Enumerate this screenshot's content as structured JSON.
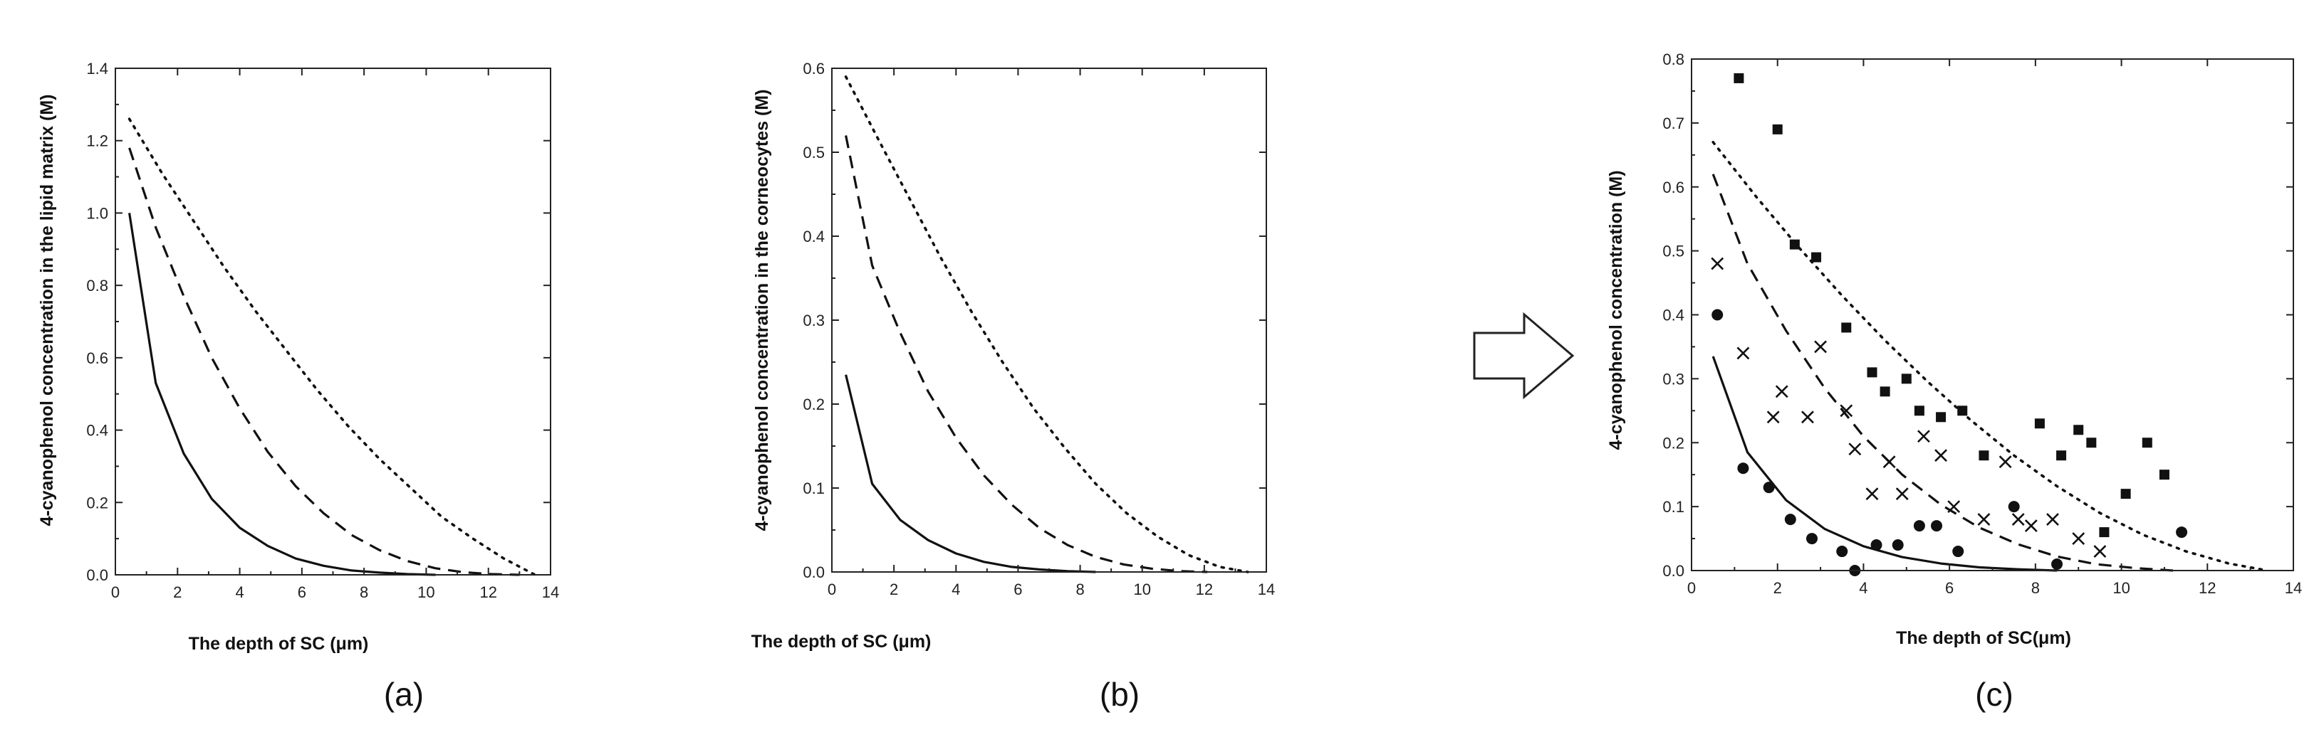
{
  "chart_data": [
    {
      "type": "line",
      "panel_label": "(a)",
      "xlabel": "The depth of SC (μm)",
      "ylabel": "4-cyanophenol concentration in the lipid matrix (M)",
      "xlim": [
        0,
        14
      ],
      "ylim": [
        0,
        1.4
      ],
      "xticks": [
        0,
        2,
        4,
        6,
        8,
        10,
        12,
        14
      ],
      "yticks": [
        0.0,
        0.2,
        0.4,
        0.6,
        0.8,
        1.0,
        1.2,
        1.4
      ],
      "ytick_labels": [
        "0.0",
        "0.2",
        "0.4",
        "0.6",
        "0.8",
        "1.0",
        "1.2",
        "1.4"
      ],
      "grid": false,
      "series": [
        {
          "style": "solid",
          "x": [
            0.45,
            1.3,
            2.2,
            3.1,
            4.0,
            4.9,
            5.8,
            6.7,
            7.6,
            8.5,
            9.4,
            10.3
          ],
          "y": [
            1.0,
            0.53,
            0.335,
            0.21,
            0.13,
            0.08,
            0.045,
            0.025,
            0.012,
            0.006,
            0.002,
            0.0
          ]
        },
        {
          "style": "dashed",
          "x": [
            0.45,
            1.3,
            2.2,
            3.1,
            4.0,
            4.9,
            5.8,
            6.7,
            7.6,
            8.5,
            9.4,
            10.3,
            11.2,
            12.1,
            13.0
          ],
          "y": [
            1.18,
            0.96,
            0.77,
            0.6,
            0.46,
            0.34,
            0.245,
            0.17,
            0.11,
            0.068,
            0.038,
            0.018,
            0.007,
            0.002,
            0.0
          ]
        },
        {
          "style": "dotted",
          "x": [
            0.45,
            1.5,
            2.5,
            3.5,
            4.5,
            5.5,
            6.5,
            7.5,
            8.5,
            9.5,
            10.5,
            11.5,
            12.5,
            13.5
          ],
          "y": [
            1.26,
            1.11,
            0.98,
            0.85,
            0.73,
            0.62,
            0.51,
            0.41,
            0.32,
            0.24,
            0.16,
            0.1,
            0.045,
            0.0
          ]
        }
      ]
    },
    {
      "type": "line",
      "panel_label": "(b)",
      "xlabel": "The depth of SC (μm)",
      "ylabel": "4-cyanophenol concentration in the corneocytes (M)",
      "xlim": [
        0,
        14
      ],
      "ylim": [
        0,
        0.6
      ],
      "xticks": [
        0,
        2,
        4,
        6,
        8,
        10,
        12,
        14
      ],
      "yticks": [
        0.0,
        0.1,
        0.2,
        0.3,
        0.4,
        0.5,
        0.6
      ],
      "ytick_labels": [
        "0.0",
        "0.1",
        "0.2",
        "0.3",
        "0.4",
        "0.5",
        "0.6"
      ],
      "grid": false,
      "series": [
        {
          "style": "solid",
          "x": [
            0.45,
            1.3,
            2.2,
            3.1,
            4.0,
            4.9,
            5.8,
            6.7,
            7.6,
            8.5
          ],
          "y": [
            0.235,
            0.105,
            0.062,
            0.038,
            0.022,
            0.012,
            0.006,
            0.003,
            0.001,
            0.0
          ]
        },
        {
          "style": "dashed",
          "x": [
            0.45,
            1.3,
            2.2,
            3.1,
            4.0,
            4.9,
            5.8,
            6.7,
            7.6,
            8.5,
            9.4,
            10.3,
            11.2,
            12.1
          ],
          "y": [
            0.52,
            0.365,
            0.285,
            0.215,
            0.16,
            0.115,
            0.08,
            0.052,
            0.032,
            0.018,
            0.009,
            0.004,
            0.001,
            0.0
          ]
        },
        {
          "style": "dotted",
          "x": [
            0.45,
            1.5,
            2.5,
            3.5,
            4.5,
            5.5,
            6.5,
            7.5,
            8.5,
            9.5,
            10.5,
            11.5,
            12.5,
            13.4
          ],
          "y": [
            0.59,
            0.515,
            0.445,
            0.375,
            0.31,
            0.25,
            0.195,
            0.148,
            0.105,
            0.07,
            0.042,
            0.02,
            0.006,
            0.0
          ]
        }
      ]
    },
    {
      "type": "scatter",
      "panel_label": "(c)",
      "xlabel": "The depth of SC(μm)",
      "ylabel": "4-cyanophenol concentration (M)",
      "xlim": [
        0,
        14
      ],
      "ylim": [
        0,
        0.8
      ],
      "xticks": [
        0,
        2,
        4,
        6,
        8,
        10,
        12,
        14
      ],
      "yticks": [
        0.0,
        0.1,
        0.2,
        0.3,
        0.4,
        0.5,
        0.6,
        0.7,
        0.8
      ],
      "ytick_labels": [
        "0.0",
        "0.1",
        "0.2",
        "0.3",
        "0.4",
        "0.5",
        "0.6",
        "0.7",
        "0.8"
      ],
      "grid": false,
      "series": [
        {
          "style": "solid",
          "x": [
            0.5,
            1.3,
            2.2,
            3.1,
            4.0,
            4.9,
            5.8,
            6.7,
            7.6,
            8.5
          ],
          "y": [
            0.335,
            0.185,
            0.11,
            0.065,
            0.038,
            0.021,
            0.011,
            0.005,
            0.002,
            0.0
          ]
        },
        {
          "style": "dashed",
          "x": [
            0.5,
            1.3,
            2.2,
            3.1,
            4.0,
            4.9,
            5.8,
            6.7,
            7.6,
            8.5,
            9.4,
            10.3,
            11.2
          ],
          "y": [
            0.62,
            0.48,
            0.375,
            0.285,
            0.21,
            0.15,
            0.103,
            0.067,
            0.041,
            0.022,
            0.01,
            0.004,
            0.0
          ]
        },
        {
          "style": "dotted",
          "x": [
            0.5,
            1.5,
            2.5,
            3.5,
            4.5,
            5.5,
            6.5,
            7.5,
            8.5,
            9.5,
            10.5,
            11.5,
            12.5,
            13.4
          ],
          "y": [
            0.67,
            0.585,
            0.505,
            0.43,
            0.36,
            0.295,
            0.235,
            0.18,
            0.132,
            0.09,
            0.056,
            0.03,
            0.011,
            0.0
          ]
        },
        {
          "marker": "square",
          "x": [
            1.1,
            2.0,
            2.4,
            2.9,
            3.6,
            4.2,
            4.5,
            5.0,
            5.3,
            5.8,
            6.3,
            6.8,
            8.1,
            8.6,
            9.0,
            9.3,
            9.6,
            10.1,
            10.6,
            11.0
          ],
          "y": [
            0.77,
            0.69,
            0.51,
            0.49,
            0.38,
            0.31,
            0.28,
            0.3,
            0.25,
            0.24,
            0.25,
            0.18,
            0.23,
            0.18,
            0.22,
            0.2,
            0.06,
            0.12,
            0.2,
            0.15
          ]
        },
        {
          "marker": "cross",
          "x": [
            0.6,
            1.2,
            1.9,
            2.1,
            2.7,
            3.0,
            3.6,
            3.8,
            4.2,
            4.6,
            4.9,
            5.4,
            5.8,
            6.1,
            6.8,
            7.3,
            7.6,
            7.9,
            8.4,
            9.0,
            9.5
          ],
          "y": [
            0.48,
            0.34,
            0.24,
            0.28,
            0.24,
            0.35,
            0.25,
            0.19,
            0.12,
            0.17,
            0.12,
            0.21,
            0.18,
            0.1,
            0.08,
            0.17,
            0.08,
            0.07,
            0.08,
            0.05,
            0.03
          ]
        },
        {
          "marker": "circle",
          "x": [
            0.6,
            1.2,
            1.8,
            2.3,
            2.8,
            3.5,
            3.8,
            4.3,
            4.8,
            5.3,
            5.7,
            6.2,
            7.5,
            8.5,
            11.4
          ],
          "y": [
            0.4,
            0.16,
            0.13,
            0.08,
            0.05,
            0.03,
            0.0,
            0.04,
            0.04,
            0.07,
            0.07,
            0.03,
            0.1,
            0.01,
            0.06
          ]
        }
      ]
    }
  ]
}
